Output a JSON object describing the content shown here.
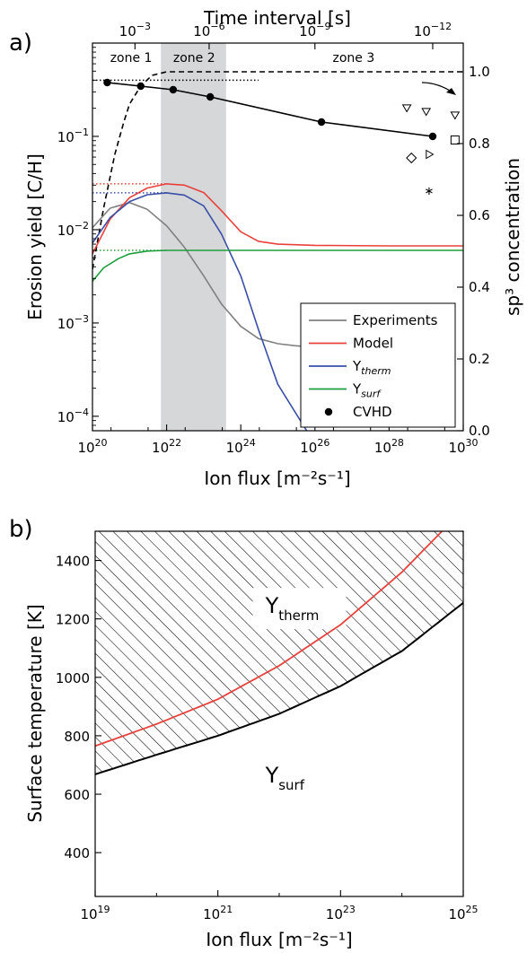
{
  "chart_data": [
    {
      "type": "line",
      "panel_label": "a)",
      "xlabel": "Ion flux [m⁻²s⁻¹]",
      "ylabel": "Erosion yield [C/H]",
      "y2label": "sp³ concentration",
      "top_xlabel": "Time interval [s]",
      "x_scale": "log",
      "y_scale": "log",
      "xlim": [
        1e+20,
        1e+30
      ],
      "ylim": [
        7e-05,
        1.0
      ],
      "y2lim": [
        0.0,
        1.08
      ],
      "x_ticks": [
        {
          "v": 20,
          "label": "20"
        },
        {
          "v": 22,
          "label": "22"
        },
        {
          "v": 24,
          "label": "24"
        },
        {
          "v": 26,
          "label": "26"
        },
        {
          "v": 28,
          "label": "28"
        },
        {
          "v": 30,
          "label": "30"
        }
      ],
      "y_ticks": [
        {
          "v": -4,
          "label": "−4"
        },
        {
          "v": -3,
          "label": "−3"
        },
        {
          "v": -2,
          "label": "−2"
        },
        {
          "v": -1,
          "label": "−1"
        }
      ],
      "y2_ticks": [
        "0.0",
        "0.2",
        "0.4",
        "0.6",
        "0.8",
        "1.0"
      ],
      "top_ticks": [
        {
          "flux": 1.4e+21,
          "label": "−3"
        },
        {
          "flux": 1.4e+23,
          "label": "−6"
        },
        {
          "flux": 1e+26,
          "label": "−9"
        },
        {
          "flux": 1.5e+29,
          "label": "−12"
        }
      ],
      "zones": [
        {
          "label": "zone 1",
          "x": 3e+20
        },
        {
          "label": "zone 2",
          "x": 1.5e+22,
          "shade": [
            7e+21,
            4e+23
          ]
        },
        {
          "label": "zone 3",
          "x": 3e+26
        }
      ],
      "series": [
        {
          "name": "Experiments",
          "color": "#808080",
          "axis": "left",
          "x": [
            1e+20,
            3e+20,
            1e+21,
            3e+21,
            1e+22,
            3e+22,
            1e+23,
            3e+23,
            1e+24,
            3e+24,
            1e+25,
            3e+25,
            1e+26,
            3e+26
          ],
          "y": [
            0.0105,
            0.017,
            0.0195,
            0.0165,
            0.011,
            0.0065,
            0.0032,
            0.0016,
            0.00092,
            0.00068,
            0.0006,
            0.00057,
            0.00055,
            0.00055
          ]
        },
        {
          "name": "Model",
          "color": "#e8413c",
          "axis": "left",
          "x": [
            1e+20,
            3e+20,
            1e+21,
            3e+21,
            1e+22,
            3e+22,
            1e+23,
            3e+23,
            1e+24,
            3e+24,
            1e+25,
            1e+26,
            1e+28,
            1e+30
          ],
          "y": [
            0.0055,
            0.013,
            0.022,
            0.028,
            0.031,
            0.03,
            0.025,
            0.016,
            0.0095,
            0.0075,
            0.007,
            0.0068,
            0.0067,
            0.0067
          ]
        },
        {
          "name": "Ytherm",
          "color": "#3a4fa8",
          "axis": "left",
          "x": [
            1e+20,
            3e+20,
            1e+21,
            3e+21,
            1e+22,
            3e+22,
            1e+23,
            3e+23,
            1e+24,
            3e+24,
            1e+25,
            6e+25
          ],
          "y": [
            0.0072,
            0.0135,
            0.02,
            0.0237,
            0.0248,
            0.0235,
            0.018,
            0.009,
            0.0032,
            0.00085,
            0.00022,
            7e-05
          ]
        },
        {
          "name": "Ysurf",
          "color": "#1e9e3c",
          "axis": "left",
          "x": [
            1e+20,
            2e+20,
            5e+20,
            1e+21,
            3e+21,
            1e+22,
            1e+23,
            1e+25,
            1e+28,
            1e+30
          ],
          "y": [
            0.0028,
            0.0039,
            0.0049,
            0.0055,
            0.0059,
            0.006,
            0.006,
            0.006,
            0.006,
            0.006
          ]
        },
        {
          "name": "CVHD",
          "color": "#000000",
          "axis": "right",
          "marker": "circle",
          "x": [
            2.5e+20,
            2e+21,
            1.5e+22,
            1.5e+23,
            1.5e+26,
            1.5e+29
          ],
          "y": [
            0.97,
            0.96,
            0.95,
            0.93,
            0.86,
            0.82
          ]
        }
      ],
      "guides": [
        {
          "axis": "left",
          "y": 0.4,
          "x": [
            1e+20,
            3e+24
          ],
          "color": "#000000",
          "style": "dotted"
        },
        {
          "axis": "left",
          "y": 0.031,
          "x": [
            1e+20,
            1e+22
          ],
          "color": "#e8413c",
          "style": "dotted"
        },
        {
          "axis": "left",
          "y": 0.0248,
          "x": [
            1e+20,
            1e+22
          ],
          "color": "#3a4fa8",
          "style": "dotted"
        },
        {
          "axis": "left",
          "y": 0.006,
          "x": [
            1e+20,
            1e+22
          ],
          "color": "#1e9e3c",
          "style": "dotted"
        }
      ],
      "sp3_dashed": {
        "color": "#000000",
        "axis": "right",
        "x": [
          1e+20,
          2e+20,
          4e+20,
          7e+20,
          1e+21,
          2e+21,
          4e+21,
          1e+22,
          3e+22,
          1e+23,
          1e+24,
          1e+26,
          1e+30
        ],
        "y": [
          0.45,
          0.62,
          0.77,
          0.86,
          0.91,
          0.96,
          0.99,
          1.0,
          1.0,
          1.0,
          1.0,
          1.0,
          1.0
        ]
      },
      "open_markers": [
        {
          "shape": "triangle-down",
          "x": 3e+28,
          "y": 0.9
        },
        {
          "shape": "triangle-down",
          "x": 1e+29,
          "y": 0.89
        },
        {
          "shape": "triangle-down",
          "x": 6e+29,
          "y": 0.88
        },
        {
          "shape": "square",
          "x": 6e+29,
          "y": 0.81
        },
        {
          "shape": "diamond",
          "x": 4e+28,
          "y": 0.76
        },
        {
          "shape": "triangle-right",
          "x": 1.2e+29,
          "y": 0.77
        },
        {
          "shape": "star",
          "x": 1.2e+29,
          "y": 0.67
        }
      ],
      "legend_position": "lower-right"
    },
    {
      "type": "area",
      "panel_label": "b)",
      "xlabel": "Ion flux [m⁻²s⁻¹]",
      "ylabel": "Surface temperature [K]",
      "x_scale": "log",
      "xlim": [
        1e+19,
        1e+25
      ],
      "ylim": [
        250,
        1500
      ],
      "x_ticks": [
        {
          "v": 19,
          "label": "19"
        },
        {
          "v": 21,
          "label": "21"
        },
        {
          "v": 23,
          "label": "23"
        },
        {
          "v": 25,
          "label": "25"
        }
      ],
      "y_ticks": [
        400,
        600,
        800,
        1000,
        1200,
        1400
      ],
      "region_labels": [
        {
          "main": "Y",
          "sub": "therm",
          "x": 2e+22,
          "y": 1220
        },
        {
          "main": "Y",
          "sub": "surf",
          "x": 2e+22,
          "y": 640
        }
      ],
      "boundary": {
        "color": "#000000",
        "x": [
          1e+19,
          1e+20,
          1e+21,
          1e+22,
          1e+23,
          1e+24,
          1e+25
        ],
        "y": [
          668,
          735,
          800,
          875,
          970,
          1090,
          1255
        ]
      },
      "red_curve": {
        "color": "#e8413c",
        "x": [
          1e+19,
          1e+20,
          1e+21,
          1e+22,
          1e+23,
          1e+24,
          4.5e+24
        ],
        "y": [
          765,
          840,
          925,
          1040,
          1180,
          1360,
          1500
        ]
      },
      "hatch": "above boundary"
    }
  ]
}
